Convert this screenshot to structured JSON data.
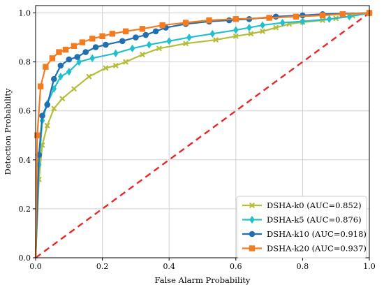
{
  "chart_data": {
    "type": "line",
    "title": "",
    "xlabel": "False Alarm Probability",
    "ylabel": "Detection Probability",
    "xlim": [
      0,
      1
    ],
    "ylim": [
      0,
      1.03
    ],
    "xticks": [
      0.0,
      0.2,
      0.4,
      0.6,
      0.8,
      1.0
    ],
    "yticks": [
      0.0,
      0.2,
      0.4,
      0.6,
      0.8,
      1.0
    ],
    "xtick_labels": [
      "0.0",
      "0.2",
      "0.4",
      "0.6",
      "0.8",
      "1.0"
    ],
    "ytick_labels": [
      "0.0",
      "0.2",
      "0.4",
      "0.6",
      "0.8",
      "1.0"
    ],
    "grid": true,
    "legend_position": "bottom-right",
    "series": [
      {
        "name": "DSHA-k0 (AUC=0.852)",
        "color": "#b5bd3a",
        "marker": "x-cross",
        "x": [
          0,
          0.01,
          0.02,
          0.035,
          0.055,
          0.08,
          0.115,
          0.16,
          0.21,
          0.24,
          0.27,
          0.32,
          0.37,
          0.45,
          0.54,
          0.6,
          0.645,
          0.68,
          0.72,
          0.76,
          0.8,
          0.86,
          0.9,
          0.95,
          1.0
        ],
        "y": [
          0,
          0.32,
          0.46,
          0.54,
          0.61,
          0.65,
          0.69,
          0.74,
          0.775,
          0.785,
          0.8,
          0.83,
          0.855,
          0.875,
          0.89,
          0.905,
          0.915,
          0.925,
          0.94,
          0.955,
          0.962,
          0.97,
          0.978,
          0.988,
          1.0
        ]
      },
      {
        "name": "DSHA-k5 (AUC=0.876)",
        "color": "#22bfcf",
        "marker": "diamond",
        "x": [
          0,
          0.01,
          0.02,
          0.035,
          0.055,
          0.075,
          0.1,
          0.13,
          0.17,
          0.24,
          0.29,
          0.34,
          0.4,
          0.46,
          0.53,
          0.6,
          0.64,
          0.68,
          0.74,
          0.8,
          0.88,
          0.94,
          1.0
        ],
        "y": [
          0,
          0.38,
          0.56,
          0.63,
          0.69,
          0.74,
          0.76,
          0.8,
          0.815,
          0.835,
          0.855,
          0.87,
          0.885,
          0.9,
          0.915,
          0.93,
          0.94,
          0.95,
          0.96,
          0.965,
          0.975,
          0.985,
          1.0
        ]
      },
      {
        "name": "DSHA-k10 (AUC=0.918)",
        "color": "#1f6fb2",
        "marker": "circle",
        "x": [
          0,
          0.01,
          0.02,
          0.035,
          0.055,
          0.075,
          0.1,
          0.125,
          0.15,
          0.18,
          0.21,
          0.26,
          0.3,
          0.33,
          0.36,
          0.39,
          0.45,
          0.52,
          0.58,
          0.64,
          0.72,
          0.8,
          0.86,
          1.0
        ],
        "y": [
          0,
          0.42,
          0.58,
          0.625,
          0.73,
          0.785,
          0.81,
          0.82,
          0.84,
          0.86,
          0.87,
          0.885,
          0.9,
          0.91,
          0.925,
          0.94,
          0.955,
          0.965,
          0.97,
          0.975,
          0.985,
          0.99,
          0.995,
          1.0
        ]
      },
      {
        "name": "DSHA-k20 (AUC=0.937)",
        "color": "#f47c20",
        "marker": "square",
        "x": [
          0,
          0.005,
          0.015,
          0.03,
          0.05,
          0.07,
          0.09,
          0.115,
          0.14,
          0.17,
          0.2,
          0.23,
          0.27,
          0.32,
          0.38,
          0.45,
          0.52,
          0.6,
          0.7,
          0.78,
          0.86,
          0.92,
          1.0
        ],
        "y": [
          0,
          0.5,
          0.7,
          0.78,
          0.815,
          0.84,
          0.85,
          0.865,
          0.88,
          0.895,
          0.905,
          0.915,
          0.925,
          0.935,
          0.95,
          0.96,
          0.97,
          0.975,
          0.98,
          0.985,
          0.99,
          0.995,
          1.0
        ]
      }
    ],
    "reference_line": {
      "color": "#e8272a",
      "style": "dashed",
      "x": [
        0,
        1
      ],
      "y": [
        0,
        1
      ]
    }
  }
}
